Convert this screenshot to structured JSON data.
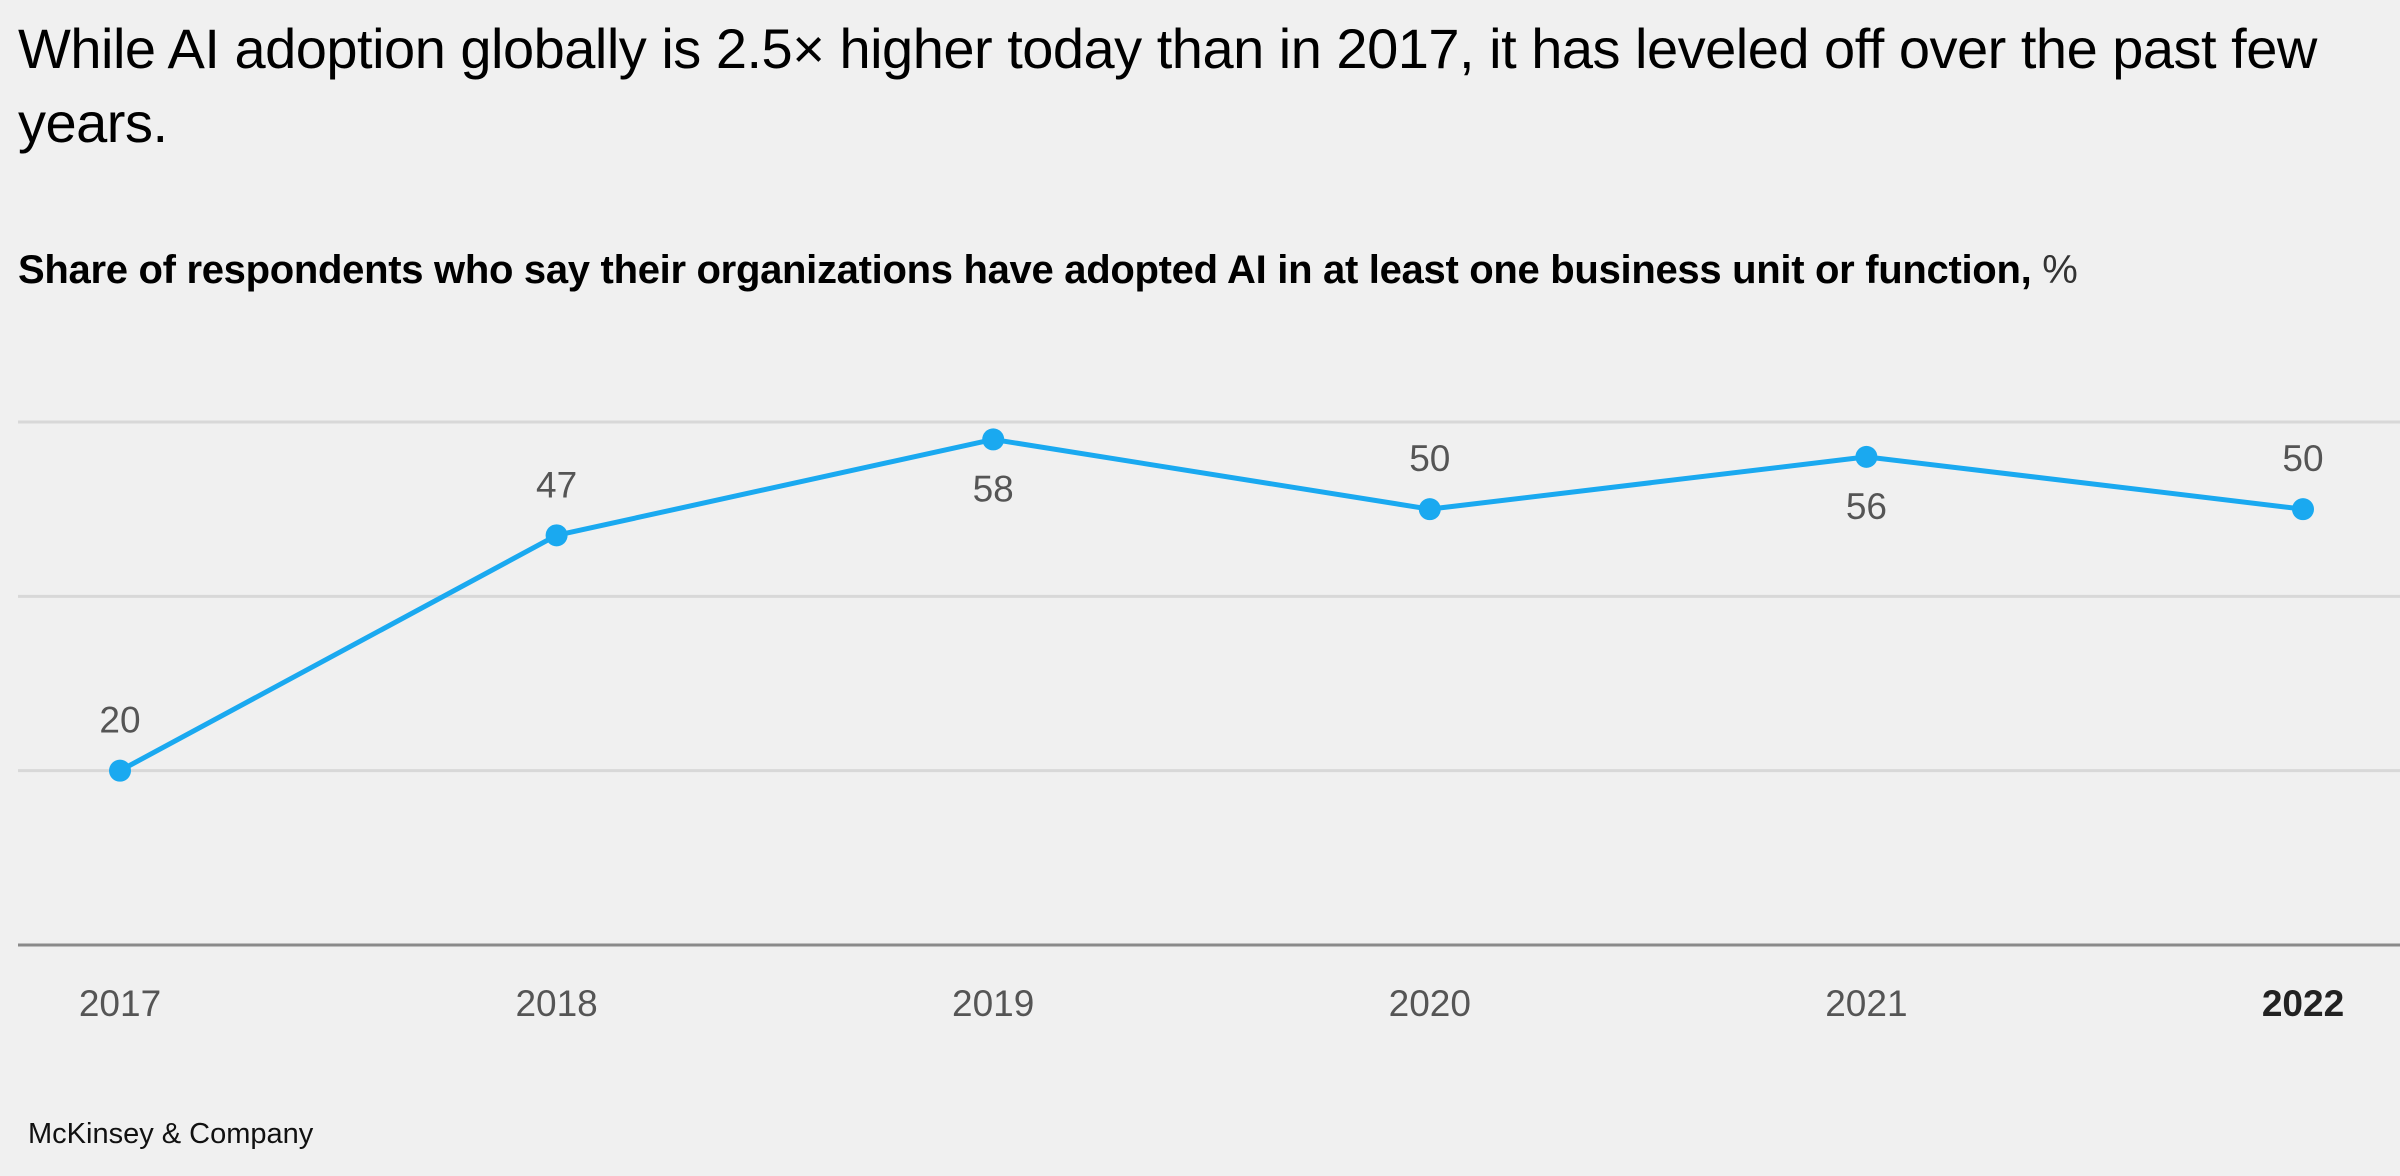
{
  "title": "While AI adoption globally is 2.5× higher today than in 2017, it has leveled off over the past few years.",
  "subtitle": "Share of respondents who say their organizations have adopted AI in at least one business unit or function,",
  "subtitle_unit": "%",
  "footer": "McKinsey & Company",
  "chart_data": {
    "type": "line",
    "title": "While AI adoption globally is 2.5× higher today than in 2017, it has leveled off over the past few years.",
    "subtitle": "Share of respondents who say their organizations have adopted AI in at least one business unit or function, %",
    "categories": [
      "2017",
      "2018",
      "2019",
      "2020",
      "2021",
      "2022"
    ],
    "values": [
      20,
      47,
      58,
      50,
      56,
      50
    ],
    "label_positions": [
      "above",
      "above",
      "below",
      "above",
      "below",
      "above"
    ],
    "highlight_category": "2022",
    "ylim": [
      0,
      60
    ],
    "gridlines": [
      20,
      40,
      60
    ],
    "grid": true,
    "line_color": "#1aa9f0",
    "xlabel": "",
    "ylabel": ""
  }
}
